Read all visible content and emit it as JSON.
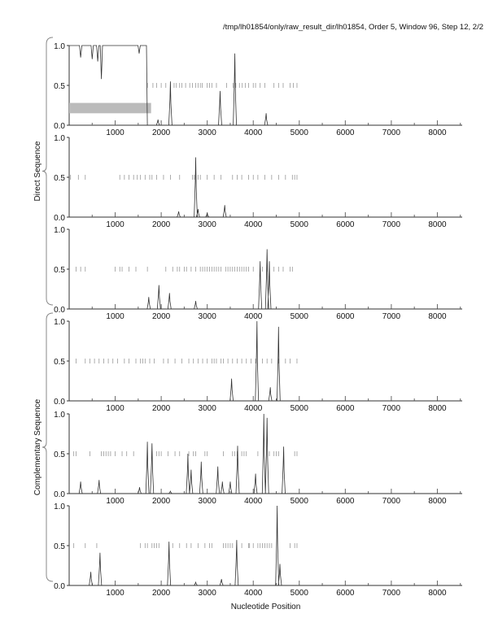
{
  "title": "/tmp/lh01854/only/raw_result_dir/lh01854, Order 5, Window 96, Step 12, 2/2",
  "chart_data": {
    "type": "line",
    "xlabel": "Nucleotide Position",
    "xlim": [
      0,
      8540
    ],
    "ylim": [
      0,
      1
    ],
    "xticks": [
      "1000",
      "2000",
      "3000",
      "4000",
      "5000",
      "6000",
      "7000",
      "8000"
    ],
    "yticks": [
      "0.0",
      "0.5",
      "1.0"
    ],
    "groups": [
      {
        "label": "Direct Sequence",
        "panels": [
          0,
          1,
          2
        ]
      },
      {
        "label": "Complementary Sequence",
        "panels": [
          3,
          4,
          5
        ]
      }
    ],
    "panels": [
      {
        "plateau": {
          "from": 0,
          "to": 1680,
          "dips": [
            [
              250,
              0.85
            ],
            [
              500,
              0.83
            ],
            [
              620,
              0.8
            ],
            [
              700,
              0.58
            ],
            [
              1520,
              0.9
            ]
          ]
        },
        "highlight": {
          "from": 0,
          "to": 1780,
          "y": [
            0.15,
            0.28
          ]
        },
        "peaks": [
          [
            1930,
            0.07
          ],
          [
            2200,
            0.55
          ],
          [
            3280,
            0.43
          ],
          [
            3600,
            0.9
          ],
          [
            4280,
            0.15
          ]
        ],
        "marks": [
          1700,
          1820,
          1900,
          2000,
          2100,
          2200,
          2280,
          2330,
          2400,
          2450,
          2530,
          2620,
          2680,
          2750,
          2800,
          2850,
          2890,
          3000,
          3050,
          3100,
          3200,
          3420,
          3560,
          3620,
          3700,
          3760,
          3830,
          3900,
          4000,
          4050,
          4150,
          4250,
          4450,
          4550,
          4650,
          4800,
          4870,
          4950
        ]
      },
      {
        "peaks": [
          [
            2380,
            0.07
          ],
          [
            2750,
            0.75
          ],
          [
            2800,
            0.1
          ],
          [
            3000,
            0.05
          ],
          [
            3380,
            0.15
          ]
        ],
        "marks": [
          30,
          200,
          350,
          1100,
          1200,
          1300,
          1400,
          1480,
          1550,
          1650,
          1750,
          1800,
          1900,
          2050,
          2200,
          2400,
          2680,
          2720,
          2800,
          2850,
          3000,
          3150,
          3300,
          3550,
          3650,
          3750,
          3900,
          4000,
          4100,
          4250,
          4400,
          4550,
          4700,
          4850,
          4900,
          4950
        ]
      },
      {
        "peaks": [
          [
            1730,
            0.15
          ],
          [
            1950,
            0.3
          ],
          [
            2180,
            0.2
          ],
          [
            2750,
            0.1
          ],
          [
            4150,
            0.6
          ],
          [
            4300,
            0.75
          ],
          [
            4350,
            0.6
          ]
        ],
        "marks": [
          150,
          250,
          350,
          1000,
          1100,
          1150,
          1300,
          1450,
          1700,
          2100,
          2250,
          2350,
          2400,
          2500,
          2550,
          2650,
          2750,
          2850,
          2900,
          2950,
          3000,
          3050,
          3100,
          3150,
          3200,
          3250,
          3300,
          3400,
          3450,
          3500,
          3550,
          3600,
          3650,
          3700,
          3750,
          3800,
          3850,
          3900,
          4000,
          4200,
          4300,
          4450,
          4550,
          4650,
          4800,
          4850
        ]
      },
      {
        "peaks": [
          [
            3530,
            0.28
          ],
          [
            4080,
            1.0
          ],
          [
            4370,
            0.17
          ],
          [
            4550,
            0.93
          ]
        ],
        "marks": [
          150,
          350,
          450,
          550,
          650,
          750,
          850,
          950,
          1050,
          1200,
          1300,
          1450,
          1550,
          1600,
          1650,
          1750,
          1850,
          2050,
          2150,
          2300,
          2450,
          2600,
          2700,
          2800,
          2900,
          3000,
          3100,
          3150,
          3200,
          3300,
          3350,
          3450,
          3550,
          3650,
          3750,
          3850,
          3950,
          4050,
          4200,
          4300,
          4400,
          4550,
          4700,
          4800,
          4950
        ]
      },
      {
        "peaks": [
          [
            250,
            0.15
          ],
          [
            650,
            0.17
          ],
          [
            1530,
            0.08
          ],
          [
            1700,
            0.65
          ],
          [
            1800,
            0.63
          ],
          [
            2200,
            0.03
          ],
          [
            2580,
            0.5
          ],
          [
            2650,
            0.3
          ],
          [
            2870,
            0.4
          ],
          [
            3230,
            0.34
          ],
          [
            3330,
            0.15
          ],
          [
            3500,
            0.15
          ],
          [
            3660,
            0.6
          ],
          [
            4050,
            0.25
          ],
          [
            4230,
            1.0
          ],
          [
            4300,
            0.95
          ],
          [
            4660,
            0.59
          ]
        ],
        "marks": [
          100,
          150,
          450,
          700,
          750,
          800,
          850,
          900,
          1000,
          1150,
          1250,
          1400,
          1800,
          1900,
          1950,
          2000,
          2150,
          2300,
          2400,
          2600,
          2700,
          2750,
          2950,
          3000,
          3350,
          3550,
          3600,
          3650,
          3750,
          3800,
          3850,
          4100,
          4350,
          4450,
          4500,
          4550,
          4900,
          4950
        ]
      },
      {
        "peaks": [
          [
            470,
            0.17
          ],
          [
            670,
            0.41
          ],
          [
            2170,
            0.55
          ],
          [
            2750,
            0.04
          ],
          [
            3310,
            0.08
          ],
          [
            3640,
            0.57
          ],
          [
            4520,
            1.0
          ],
          [
            4580,
            0.27
          ]
        ],
        "marks": [
          100,
          350,
          600,
          1550,
          1650,
          1700,
          1800,
          1850,
          1900,
          1950,
          2250,
          2400,
          2550,
          2650,
          2800,
          2950,
          3050,
          3100,
          3350,
          3400,
          3450,
          3500,
          3550,
          3750,
          3900,
          3920,
          4000,
          4100,
          4150,
          4200,
          4250,
          4300,
          4350,
          4400,
          4800,
          4900,
          4950
        ]
      }
    ]
  }
}
